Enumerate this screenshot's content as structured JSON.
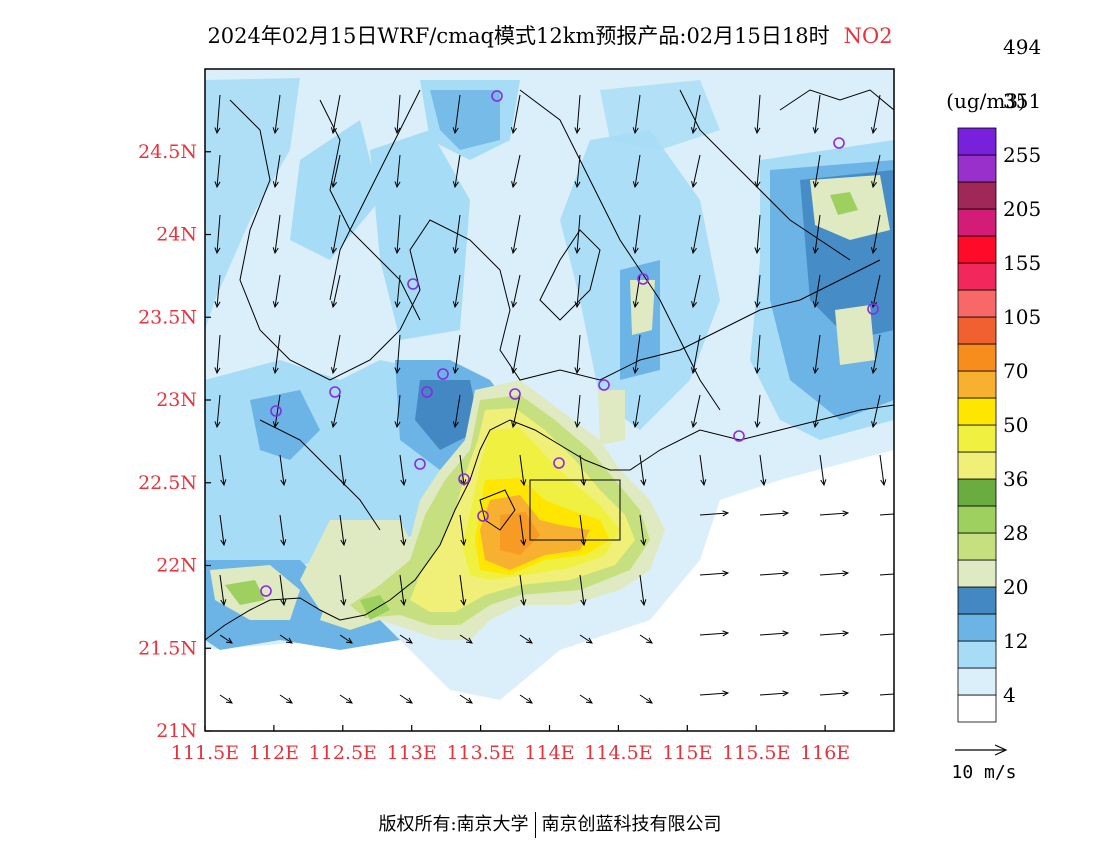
{
  "title": {
    "text": "2024年02月15日WRF/cmaq模式12km预报产品:02月15日18时",
    "species": "NO2"
  },
  "axes": {
    "lon_ticks": [
      "111.5E",
      "112E",
      "112.5E",
      "113E",
      "113.5E",
      "114E",
      "114.5E",
      "115E",
      "115.5E",
      "116E"
    ],
    "lat_ticks": [
      "21N",
      "21.5N",
      "22N",
      "22.5N",
      "23N",
      "23.5N",
      "24N",
      "24.5N"
    ],
    "tick_color": "#e8333c"
  },
  "colorbar": {
    "unit": "(ug/m3)",
    "labels": [
      "4",
      "12",
      "20",
      "28",
      "36",
      "50",
      "70",
      "105",
      "155",
      "205",
      "255",
      "351",
      "494"
    ],
    "colors": [
      "#ffffff",
      "#dbeffb",
      "#a6dcf6",
      "#6cb4e6",
      "#4387c3",
      "#dfe9c2",
      "#c6e080",
      "#9ed060",
      "#6aac3f",
      "#f0f078",
      "#f0f040",
      "#ffe600",
      "#f8b030",
      "#f78d1c",
      "#f06030",
      "#f86868",
      "#f2285c",
      "#ff0a28",
      "#d21c78",
      "#a02858",
      "#9a30cc",
      "#7820dc"
    ],
    "wind_ref": "10 m/s"
  },
  "footer": {
    "left": "版权所有:南京大学",
    "right": "南京创蓝科技有限公司"
  }
}
